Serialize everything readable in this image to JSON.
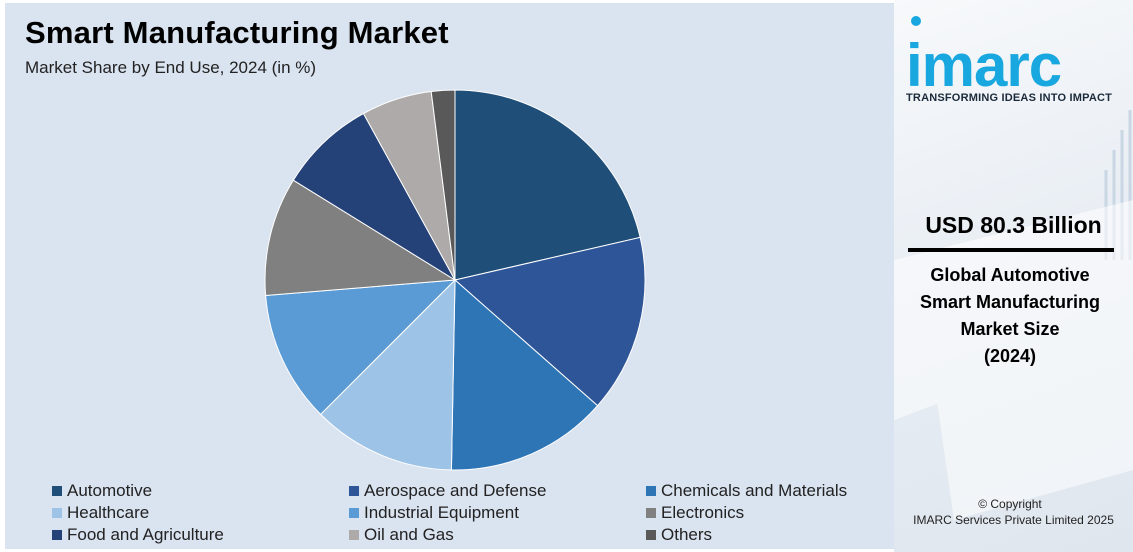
{
  "chart_data": {
    "type": "pie",
    "title": "Smart Manufacturing Market",
    "subtitle": "Market Share by End Use, 2024 (in %)",
    "unit": "%",
    "start_angle_deg": 0,
    "direction": "clockwise",
    "slices": [
      {
        "label": "Automotive",
        "value": 21.4,
        "color": "#1f4e79"
      },
      {
        "label": "Aerospace and Defense",
        "value": 15.1,
        "color": "#2e5597"
      },
      {
        "label": "Chemicals and Materials",
        "value": 13.8,
        "color": "#2e75b6"
      },
      {
        "label": "Healthcare",
        "value": 12.2,
        "color": "#9dc3e6"
      },
      {
        "label": "Industrial Equipment",
        "value": 11.2,
        "color": "#5b9bd5"
      },
      {
        "label": "Electronics",
        "value": 10.1,
        "color": "#808080"
      },
      {
        "label": "Food and Agriculture",
        "value": 8.2,
        "color": "#254278"
      },
      {
        "label": "Oil and Gas",
        "value": 6.0,
        "color": "#aeaaaa"
      },
      {
        "label": "Others",
        "value": 2.0,
        "color": "#595959"
      }
    ],
    "legend_position": "bottom"
  },
  "sidebar": {
    "logo_text": "imarc",
    "tagline": "TRANSFORMING IDEAS INTO IMPACT",
    "value": "USD 80.3 Billion",
    "caption_lines": [
      "Global Automotive",
      "Smart Manufacturing",
      "Market Size",
      "(2024)"
    ],
    "copyright": "© Copyright",
    "company": "IMARC Services Private Limited 2025"
  },
  "colors": {
    "panel_bg": "#dae3f0",
    "brand": "#19a7e0"
  }
}
